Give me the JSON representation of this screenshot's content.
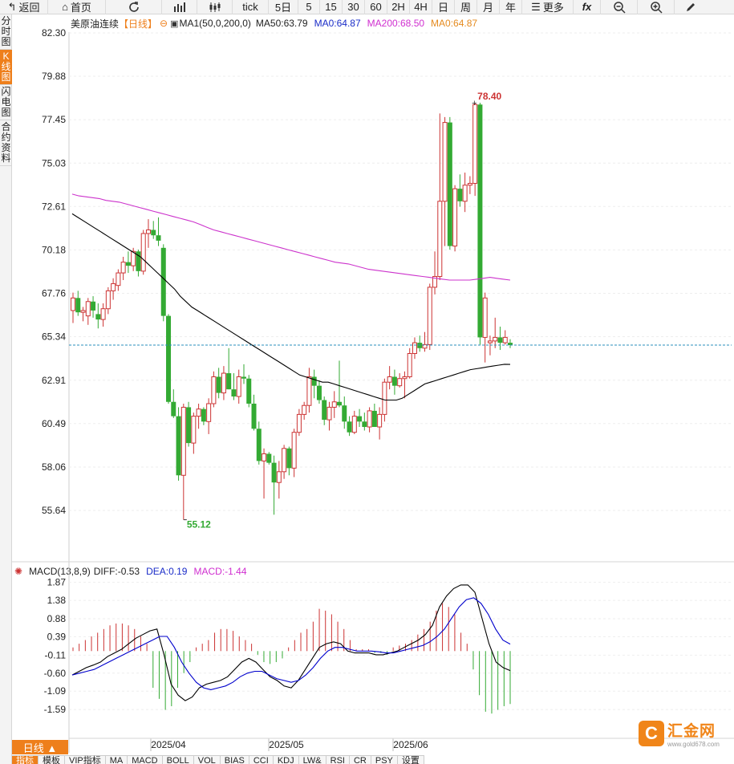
{
  "toolbar": {
    "back": "返回",
    "home": "首页",
    "tick": "tick",
    "periods": [
      "5日",
      "5",
      "15",
      "30",
      "60",
      "2H",
      "4H",
      "日",
      "周",
      "月",
      "年"
    ],
    "more": "更多",
    "fx": "fx"
  },
  "sidebar": [
    {
      "label": "分时图",
      "active": false
    },
    {
      "label": "K线图",
      "active": true
    },
    {
      "label": "闪电图",
      "active": false
    },
    {
      "label": "合约资料",
      "active": false
    }
  ],
  "main_header": {
    "symbol": "美原油连续",
    "period_tag": "【日线】",
    "ma_label": "MA1(50,0,200,0)",
    "ma50": "MA50:63.79",
    "ma_a": "MA0:64.87",
    "ma200": "MA200:68.50",
    "ma_b": "MA0:64.87"
  },
  "macd_header": {
    "label": "MACD(13,8,9)",
    "diff": "DIFF:-0.53",
    "dea": "DEA:0.19",
    "macd": "MACD:-1.44"
  },
  "bottom": {
    "period_button": "日线 ▲",
    "tabs": [
      "指标",
      "模板",
      "VIP指标",
      "MA",
      "MACD",
      "BOLL",
      "VOL",
      "BIAS",
      "CCI",
      "KDJ",
      "LW&",
      "RSI",
      "CR",
      "PSY",
      "设置"
    ],
    "active_tab": 0
  },
  "watermark": {
    "logo": "C",
    "title": "汇金网",
    "url": "www.gold678.com"
  },
  "colors": {
    "up": "#cc3333",
    "down": "#33aa33",
    "ma50": "#000000",
    "ma200": "#cc33cc",
    "dea": "#0000cc",
    "accent": "#ee7f1b",
    "current_line": "#2a8fbd"
  },
  "chart_data": [
    {
      "type": "candlestick",
      "yticks": [
        "82.30",
        "79.88",
        "77.45",
        "75.03",
        "72.61",
        "70.18",
        "67.76",
        "65.34",
        "62.91",
        "60.49",
        "58.06",
        "55.64"
      ],
      "ylim": [
        53.4,
        82.3
      ],
      "xticks": [
        "2025/04",
        "2025/05",
        "2025/06"
      ],
      "high_label": "78.40",
      "low_label": "55.12",
      "current_price": 64.87,
      "candles": [
        [
          66.8,
          67.8,
          66.1,
          67.5
        ],
        [
          67.5,
          67.9,
          66.5,
          66.7
        ],
        [
          66.7,
          67.0,
          66.2,
          66.8
        ],
        [
          66.5,
          67.5,
          66.0,
          67.3
        ],
        [
          67.3,
          67.6,
          66.4,
          66.8
        ],
        [
          66.6,
          67.2,
          65.8,
          66.3
        ],
        [
          66.3,
          67.2,
          65.9,
          66.9
        ],
        [
          66.9,
          68.1,
          66.6,
          67.9
        ],
        [
          67.9,
          68.6,
          67.4,
          68.3
        ],
        [
          68.2,
          69.1,
          67.9,
          68.9
        ],
        [
          68.9,
          69.8,
          68.5,
          69.5
        ],
        [
          69.5,
          70.1,
          68.9,
          69.3
        ],
        [
          69.3,
          70.3,
          69.0,
          70.1
        ],
        [
          70.1,
          70.2,
          68.7,
          69.0
        ],
        [
          69.0,
          71.3,
          68.8,
          71.1
        ],
        [
          71.1,
          71.9,
          70.3,
          71.3
        ],
        [
          71.3,
          71.8,
          70.8,
          71.0
        ],
        [
          71.0,
          72.0,
          70.4,
          70.7
        ],
        [
          70.3,
          70.5,
          66.2,
          66.5
        ],
        [
          66.5,
          66.6,
          61.6,
          61.7
        ],
        [
          61.7,
          62.4,
          60.8,
          60.9
        ],
        [
          60.9,
          61.4,
          57.3,
          57.6
        ],
        [
          57.6,
          61.6,
          55.12,
          61.4
        ],
        [
          61.4,
          61.7,
          59.2,
          59.4
        ],
        [
          59.4,
          61.1,
          58.8,
          60.9
        ],
        [
          60.9,
          61.6,
          60.2,
          61.3
        ],
        [
          61.3,
          61.4,
          60.4,
          60.6
        ],
        [
          60.6,
          61.9,
          59.9,
          61.6
        ],
        [
          61.6,
          63.4,
          61.4,
          63.1
        ],
        [
          63.1,
          63.6,
          61.9,
          62.2
        ],
        [
          62.2,
          63.7,
          61.8,
          63.3
        ],
        [
          63.3,
          64.7,
          62.4,
          62.4
        ],
        [
          62.4,
          63.3,
          61.8,
          62.0
        ],
        [
          62.0,
          63.5,
          61.6,
          63.1
        ],
        [
          63.1,
          63.8,
          62.7,
          63.0
        ],
        [
          63.0,
          63.2,
          61.4,
          61.6
        ],
        [
          61.6,
          62.1,
          60.1,
          60.2
        ],
        [
          60.2,
          60.6,
          58.2,
          58.4
        ],
        [
          58.4,
          59.1,
          56.3,
          58.8
        ],
        [
          58.8,
          58.9,
          58.2,
          58.3
        ],
        [
          58.3,
          58.7,
          55.4,
          57.2
        ],
        [
          57.2,
          58.4,
          56.3,
          57.8
        ],
        [
          57.8,
          59.3,
          57.4,
          59.1
        ],
        [
          59.1,
          59.2,
          57.6,
          58.0
        ],
        [
          58.0,
          60.2,
          57.5,
          60.0
        ],
        [
          60.0,
          61.3,
          59.8,
          61.0
        ],
        [
          61.0,
          61.7,
          60.7,
          61.5
        ],
        [
          61.5,
          63.6,
          61.1,
          63.1
        ],
        [
          63.1,
          63.5,
          61.9,
          62.6
        ],
        [
          62.6,
          62.9,
          61.6,
          61.8
        ],
        [
          61.8,
          62.0,
          60.4,
          60.7
        ],
        [
          60.7,
          61.7,
          60.1,
          61.4
        ],
        [
          61.4,
          62.3,
          60.8,
          61.7
        ],
        [
          61.7,
          64.0,
          61.4,
          61.5
        ],
        [
          61.5,
          62.0,
          60.2,
          60.6
        ],
        [
          60.6,
          60.9,
          59.8,
          60.0
        ],
        [
          60.0,
          61.2,
          59.9,
          60.9
        ],
        [
          60.9,
          61.3,
          60.3,
          60.6
        ],
        [
          60.6,
          61.1,
          60.1,
          60.3
        ],
        [
          60.3,
          61.4,
          60.0,
          61.2
        ],
        [
          61.2,
          61.6,
          60.3,
          60.3
        ],
        [
          60.3,
          61.4,
          59.6,
          61.0
        ],
        [
          61.0,
          63.0,
          60.6,
          62.8
        ],
        [
          62.8,
          63.7,
          62.4,
          63.1
        ],
        [
          63.1,
          63.5,
          62.1,
          62.6
        ],
        [
          62.6,
          63.3,
          62.5,
          63.0
        ],
        [
          63.0,
          63.4,
          61.9,
          63.1
        ],
        [
          63.1,
          64.7,
          63.0,
          64.4
        ],
        [
          64.4,
          65.3,
          64.1,
          65.0
        ],
        [
          65.0,
          65.4,
          64.5,
          64.7
        ],
        [
          64.7,
          65.6,
          64.5,
          64.9
        ],
        [
          64.9,
          68.3,
          64.6,
          68.1
        ],
        [
          68.1,
          70.1,
          67.7,
          68.7
        ],
        [
          68.7,
          77.8,
          68.5,
          72.9
        ],
        [
          72.9,
          77.6,
          70.4,
          77.3
        ],
        [
          77.3,
          77.6,
          70.2,
          70.4
        ],
        [
          70.4,
          73.8,
          70.1,
          73.6
        ],
        [
          73.6,
          74.4,
          72.6,
          72.9
        ],
        [
          72.9,
          74.5,
          72.3,
          73.8
        ],
        [
          73.8,
          74.3,
          73.3,
          73.9
        ],
        [
          73.9,
          78.4,
          73.2,
          78.3
        ],
        [
          78.3,
          78.4,
          64.9,
          65.3
        ],
        [
          65.3,
          67.8,
          63.9,
          67.5
        ],
        [
          65.0,
          65.4,
          64.3,
          65.1
        ],
        [
          65.1,
          66.4,
          64.7,
          65.3
        ],
        [
          65.3,
          65.9,
          64.6,
          65.0
        ],
        [
          65.0,
          65.7,
          64.9,
          65.3
        ],
        [
          65.0,
          65.2,
          64.7,
          64.87
        ]
      ],
      "series": [
        {
          "name": "MA50",
          "values": [
            72.2,
            72.0,
            71.8,
            71.6,
            71.4,
            71.2,
            71.0,
            70.8,
            70.6,
            70.4,
            70.2,
            70.0,
            69.8,
            69.5,
            69.2,
            68.9,
            68.6,
            68.3,
            68.0,
            67.6,
            67.3,
            67.0,
            66.8,
            66.6,
            66.4,
            66.2,
            66.0,
            65.8,
            65.6,
            65.4,
            65.2,
            65.0,
            64.8,
            64.6,
            64.4,
            64.2,
            64.0,
            63.8,
            63.6,
            63.4,
            63.2,
            63.1,
            63.0,
            62.9,
            62.8,
            62.8,
            62.7,
            62.6,
            62.5,
            62.4,
            62.3,
            62.2,
            62.1,
            62.0,
            61.9,
            61.8,
            61.8,
            61.8,
            61.9,
            62.1,
            62.3,
            62.5,
            62.7,
            62.8,
            62.9,
            63.0,
            63.1,
            63.2,
            63.3,
            63.4,
            63.5,
            63.55,
            63.6,
            63.65,
            63.7,
            63.75,
            63.8,
            63.79
          ]
        },
        {
          "name": "MA200",
          "values": [
            73.3,
            73.2,
            73.15,
            73.1,
            73.05,
            72.95,
            72.9,
            72.85,
            72.75,
            72.65,
            72.55,
            72.45,
            72.35,
            72.25,
            72.15,
            72.05,
            71.95,
            71.85,
            71.75,
            71.6,
            71.45,
            71.3,
            71.2,
            71.1,
            71.0,
            70.9,
            70.8,
            70.7,
            70.6,
            70.5,
            70.4,
            70.3,
            70.2,
            70.1,
            70.0,
            69.9,
            69.8,
            69.7,
            69.6,
            69.5,
            69.45,
            69.4,
            69.3,
            69.2,
            69.1,
            69.05,
            69.0,
            68.95,
            68.9,
            68.85,
            68.8,
            68.75,
            68.7,
            68.65,
            68.6,
            68.55,
            68.5,
            68.5,
            68.5,
            68.5,
            68.55,
            68.6,
            68.65,
            68.6,
            68.55,
            68.5
          ]
        },
        {
          "name": "DIFF",
          "values": [
            -0.65,
            -0.55,
            -0.45,
            -0.38,
            -0.3,
            -0.15,
            -0.05,
            0.05,
            0.2,
            0.35,
            0.45,
            0.55,
            0.6,
            -0.1,
            -0.9,
            -1.2,
            -1.35,
            -1.25,
            -1.0,
            -0.9,
            -0.85,
            -0.8,
            -0.7,
            -0.5,
            -0.3,
            -0.2,
            -0.3,
            -0.5,
            -0.7,
            -0.8,
            -0.95,
            -1.0,
            -0.8,
            -0.5,
            -0.2,
            0.1,
            0.2,
            0.25,
            0.2,
            0.0,
            -0.05,
            -0.05,
            -0.05,
            -0.1,
            -0.1,
            -0.05,
            0.0,
            0.1,
            0.2,
            0.3,
            0.45,
            0.7,
            1.2,
            1.5,
            1.7,
            1.8,
            1.8,
            1.6,
            0.9,
            0.2,
            -0.3,
            -0.45,
            -0.53
          ]
        },
        {
          "name": "DEA",
          "values": [
            -0.65,
            -0.6,
            -0.55,
            -0.5,
            -0.4,
            -0.3,
            -0.2,
            -0.1,
            0.0,
            0.1,
            0.2,
            0.3,
            0.4,
            0.4,
            0.1,
            -0.3,
            -0.6,
            -0.85,
            -1.0,
            -1.05,
            -1.0,
            -0.95,
            -0.85,
            -0.7,
            -0.6,
            -0.55,
            -0.55,
            -0.65,
            -0.75,
            -0.8,
            -0.85,
            -0.8,
            -0.65,
            -0.45,
            -0.2,
            0.0,
            0.1,
            0.1,
            0.05,
            0.0,
            0.0,
            0.0,
            -0.02,
            -0.05,
            -0.05,
            0.0,
            0.05,
            0.1,
            0.15,
            0.25,
            0.4,
            0.6,
            0.9,
            1.2,
            1.4,
            1.45,
            1.3,
            1.0,
            0.6,
            0.3,
            0.19
          ]
        },
        {
          "name": "MACD",
          "values": [
            0.1,
            0.2,
            0.3,
            0.4,
            0.5,
            0.6,
            0.7,
            0.75,
            0.75,
            0.7,
            0.6,
            0.4,
            0.2,
            -1.0,
            -1.3,
            -1.6,
            -1.5,
            -1.0,
            -0.6,
            -0.3,
            0.1,
            0.2,
            0.3,
            0.5,
            0.6,
            0.6,
            0.55,
            0.4,
            0.3,
            0.2,
            -0.1,
            -0.3,
            -0.35,
            -0.3,
            -0.2,
            0.1,
            0.3,
            0.5,
            0.6,
            0.8,
            1.15,
            1.1,
            1.0,
            0.8,
            0.6,
            0.3,
            0.05,
            0.05,
            0.05,
            -0.05,
            -0.05,
            -0.1,
            0.1,
            0.15,
            0.2,
            0.3,
            0.45,
            0.6,
            0.8,
            1.1,
            1.3,
            1.2,
            1.0,
            0.5,
            0.2,
            -0.5,
            -1.2,
            -1.65,
            -1.7,
            -1.6,
            -1.5,
            -1.44
          ]
        }
      ]
    },
    {
      "type": "bar",
      "title": "MACD",
      "yticks": [
        "1.87",
        "1.38",
        "0.88",
        "0.39",
        "-0.11",
        "-0.60",
        "-1.09",
        "-1.59"
      ],
      "ylim": [
        -1.85,
        1.95
      ]
    }
  ]
}
